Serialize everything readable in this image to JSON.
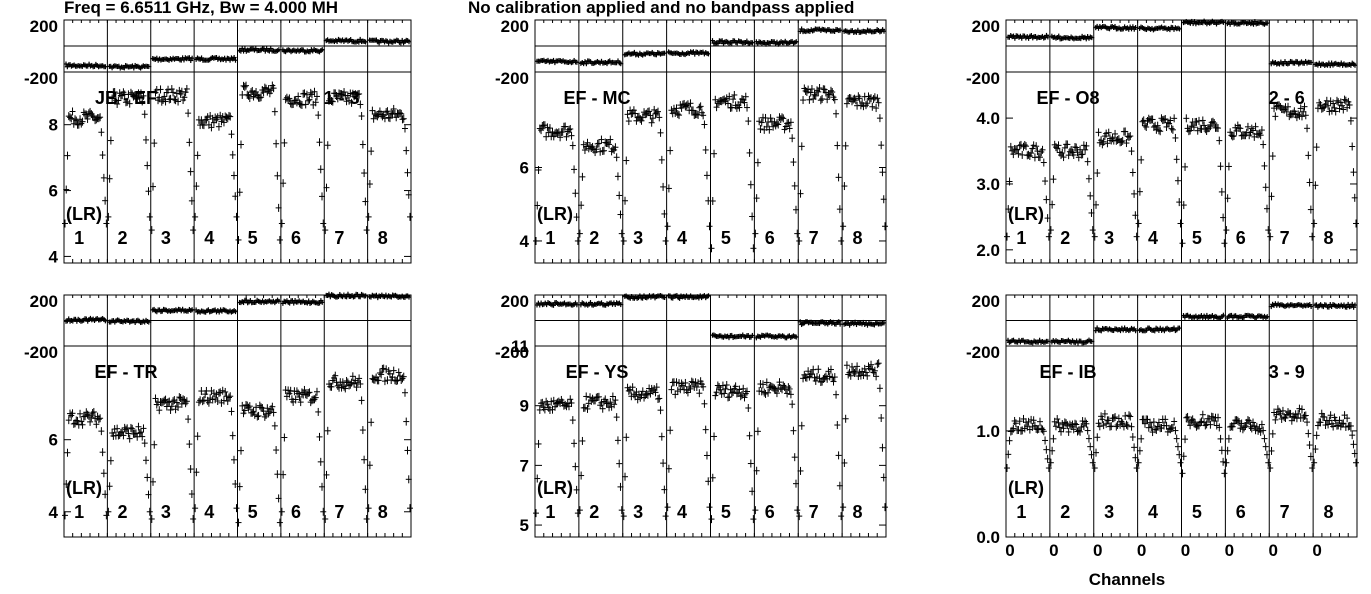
{
  "header": {
    "freq_text": "Freq = 6.6511 GHz, Bw = 4.000 MH",
    "calib_text": "No calibration applied and no bandpass applied"
  },
  "xaxis": {
    "label": "Channels",
    "tick_labels": [
      "0",
      "0",
      "0",
      "0",
      "0",
      "0",
      "0",
      "0"
    ]
  },
  "chart_data": [
    {
      "type": "scatter",
      "baseline": "JB - EF",
      "ref_text": "1 - 3",
      "polarization": "(LR)",
      "if_labels": [
        "1",
        "2",
        "3",
        "4",
        "5",
        "6",
        "7",
        "8"
      ],
      "phase_panel": {
        "ylim": [
          -200,
          200
        ],
        "tick_labels": [
          "200",
          "-200"
        ],
        "if_phase": [
          -150,
          -160,
          -100,
          -100,
          -30,
          -35,
          40,
          35
        ]
      },
      "amp_panel": {
        "ylim": [
          3.8,
          9.6
        ],
        "tick_labels": [
          "8",
          "6",
          "4"
        ],
        "if_level": [
          8.2,
          8.8,
          8.9,
          8.1,
          9.0,
          8.8,
          8.8,
          8.3
        ],
        "if_dip": [
          5.0,
          5.2,
          4.8,
          5.2,
          4.5,
          5.0,
          4.8,
          5.2
        ]
      }
    },
    {
      "type": "scatter",
      "baseline": "EF - MC",
      "ref_text": "",
      "polarization": "(LR)",
      "if_labels": [
        "1",
        "2",
        "3",
        "4",
        "5",
        "6",
        "7",
        "8"
      ],
      "phase_panel": {
        "ylim": [
          -200,
          200
        ],
        "tick_labels": [
          "200",
          "-200"
        ],
        "if_phase": [
          -120,
          -125,
          -60,
          -55,
          30,
          25,
          120,
          115
        ]
      },
      "amp_panel": {
        "ylim": [
          3.4,
          8.6
        ],
        "tick_labels": [
          "6",
          "4"
        ],
        "if_level": [
          7.0,
          6.6,
          7.4,
          7.6,
          7.8,
          7.2,
          8.0,
          7.8
        ],
        "if_dip": [
          4.0,
          4.2,
          4.0,
          4.4,
          3.8,
          4.2,
          4.0,
          4.4
        ]
      }
    },
    {
      "type": "scatter",
      "baseline": "EF - O8",
      "ref_text": "2 - 6",
      "polarization": "(LR)",
      "if_labels": [
        "1",
        "2",
        "3",
        "4",
        "5",
        "6",
        "7",
        "8"
      ],
      "phase_panel": {
        "ylim": [
          -200,
          200
        ],
        "tick_labels": [
          "200",
          "-200"
        ],
        "if_phase": [
          70,
          65,
          140,
          135,
          180,
          178,
          -130,
          -140
        ]
      },
      "amp_panel": {
        "ylim": [
          1.8,
          4.7
        ],
        "tick_labels": [
          "4.0",
          "3.0",
          "2.0"
        ],
        "if_level": [
          3.5,
          3.5,
          3.7,
          3.9,
          3.9,
          3.8,
          4.1,
          4.2
        ],
        "if_dip": [
          2.2,
          2.3,
          2.2,
          2.4,
          2.1,
          2.3,
          2.2,
          2.4
        ]
      }
    },
    {
      "type": "scatter",
      "baseline": "EF - TR",
      "ref_text": "",
      "polarization": "(LR)",
      "if_labels": [
        "1",
        "2",
        "3",
        "4",
        "5",
        "6",
        "7",
        "8"
      ],
      "phase_panel": {
        "ylim": [
          -200,
          200
        ],
        "tick_labels": [
          "200",
          "-200"
        ],
        "if_phase": [
          5,
          -5,
          80,
          75,
          150,
          145,
          195,
          190
        ]
      },
      "amp_panel": {
        "ylim": [
          3.3,
          8.6
        ],
        "tick_labels": [
          "6",
          "4"
        ],
        "if_level": [
          6.6,
          6.2,
          7.0,
          7.2,
          6.8,
          7.2,
          7.6,
          7.8
        ],
        "if_dip": [
          3.9,
          4.0,
          3.8,
          4.1,
          3.7,
          4.0,
          3.8,
          4.1
        ]
      }
    },
    {
      "type": "scatter",
      "baseline": "EF - YS",
      "ref_text": "",
      "polarization": "(LR)",
      "if_labels": [
        "1",
        "2",
        "3",
        "4",
        "5",
        "6",
        "7",
        "8"
      ],
      "phase_panel": {
        "ylim": [
          -200,
          200
        ],
        "tick_labels": [
          "200",
          "-200"
        ],
        "if_phase": [
          130,
          130,
          185,
          185,
          -125,
          -125,
          -20,
          -25
        ]
      },
      "amp_panel": {
        "ylim": [
          4.6,
          11.0
        ],
        "tick_labels": [
          "11",
          "9",
          "7",
          "5"
        ],
        "if_level": [
          9.0,
          9.1,
          9.4,
          9.6,
          9.5,
          9.6,
          10.0,
          10.2
        ],
        "if_dip": [
          5.4,
          5.5,
          5.3,
          5.6,
          5.2,
          5.5,
          5.3,
          5.6
        ]
      }
    },
    {
      "type": "scatter",
      "baseline": "EF - IB",
      "ref_text": "3 - 9",
      "polarization": "(LR)",
      "if_labels": [
        "1",
        "2",
        "3",
        "4",
        "5",
        "6",
        "7",
        "8"
      ],
      "phase_panel": {
        "ylim": [
          -200,
          200
        ],
        "tick_labels": [
          "200",
          "-200"
        ],
        "if_phase": [
          -165,
          -165,
          -70,
          -70,
          30,
          30,
          120,
          115
        ]
      },
      "amp_panel": {
        "ylim": [
          0.0,
          1.8
        ],
        "tick_labels": [
          "1.0",
          "0.0"
        ],
        "if_level": [
          1.05,
          1.05,
          1.1,
          1.05,
          1.1,
          1.05,
          1.15,
          1.1
        ],
        "if_dip": [
          0.65,
          0.7,
          0.65,
          0.7,
          0.6,
          0.7,
          0.65,
          0.7
        ]
      }
    }
  ]
}
